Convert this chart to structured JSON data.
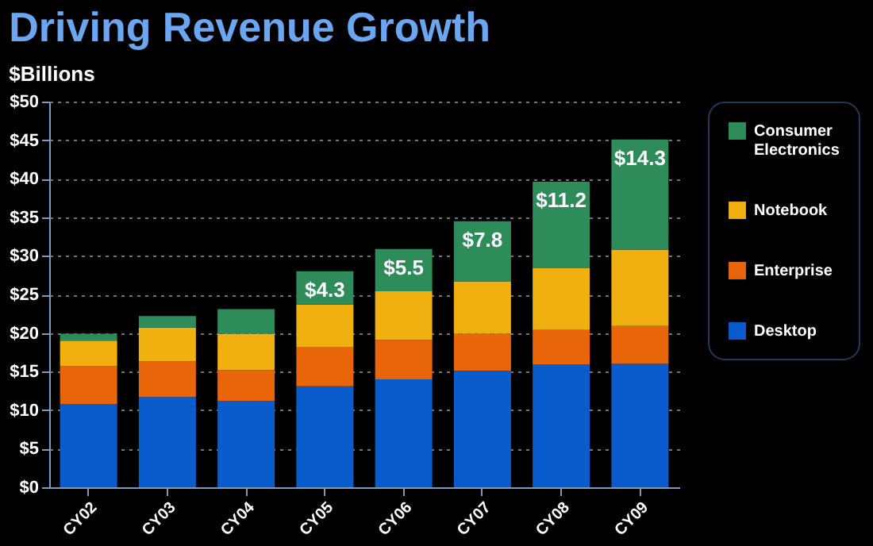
{
  "chart_data": {
    "type": "bar",
    "title": "Driving Revenue Growth",
    "ylabel": "$Billions",
    "stacked": true,
    "categories": [
      "CY02",
      "CY03",
      "CY04",
      "CY05",
      "CY06",
      "CY07",
      "CY08",
      "CY09"
    ],
    "series": [
      {
        "name": "Desktop",
        "color": "#0a5ccc",
        "values": [
          10.8,
          11.7,
          11.2,
          13.1,
          14.0,
          15.1,
          15.9,
          16.0
        ]
      },
      {
        "name": "Enterprise",
        "color": "#e8650a",
        "values": [
          4.9,
          4.6,
          4.0,
          5.1,
          5.1,
          4.8,
          4.5,
          4.9
        ]
      },
      {
        "name": "Notebook",
        "color": "#f0b010",
        "values": [
          3.3,
          4.4,
          4.7,
          5.5,
          6.3,
          6.8,
          8.0,
          9.9
        ]
      },
      {
        "name": "Consumer Electronics",
        "color": "#2e8b5a",
        "values": [
          0.9,
          1.5,
          3.2,
          4.3,
          5.5,
          7.8,
          11.2,
          14.3
        ],
        "value_labels": [
          null,
          null,
          null,
          "$4.3",
          "$5.5",
          "$7.8",
          "$11.2",
          "$14.3"
        ]
      }
    ],
    "ylim": [
      0,
      50
    ],
    "yticks": [
      {
        "value": 0,
        "label": "$0"
      },
      {
        "value": 5,
        "label": "$5"
      },
      {
        "value": 10,
        "label": "$10"
      },
      {
        "value": 15,
        "label": "$15"
      },
      {
        "value": 20,
        "label": "$20"
      },
      {
        "value": 25,
        "label": "$25"
      },
      {
        "value": 30,
        "label": "$30"
      },
      {
        "value": 35,
        "label": "$35"
      },
      {
        "value": 40,
        "label": "$40"
      },
      {
        "value": 45,
        "label": "$45"
      },
      {
        "value": 50,
        "label": "$50"
      }
    ],
    "grid": "y",
    "legend": "right"
  }
}
